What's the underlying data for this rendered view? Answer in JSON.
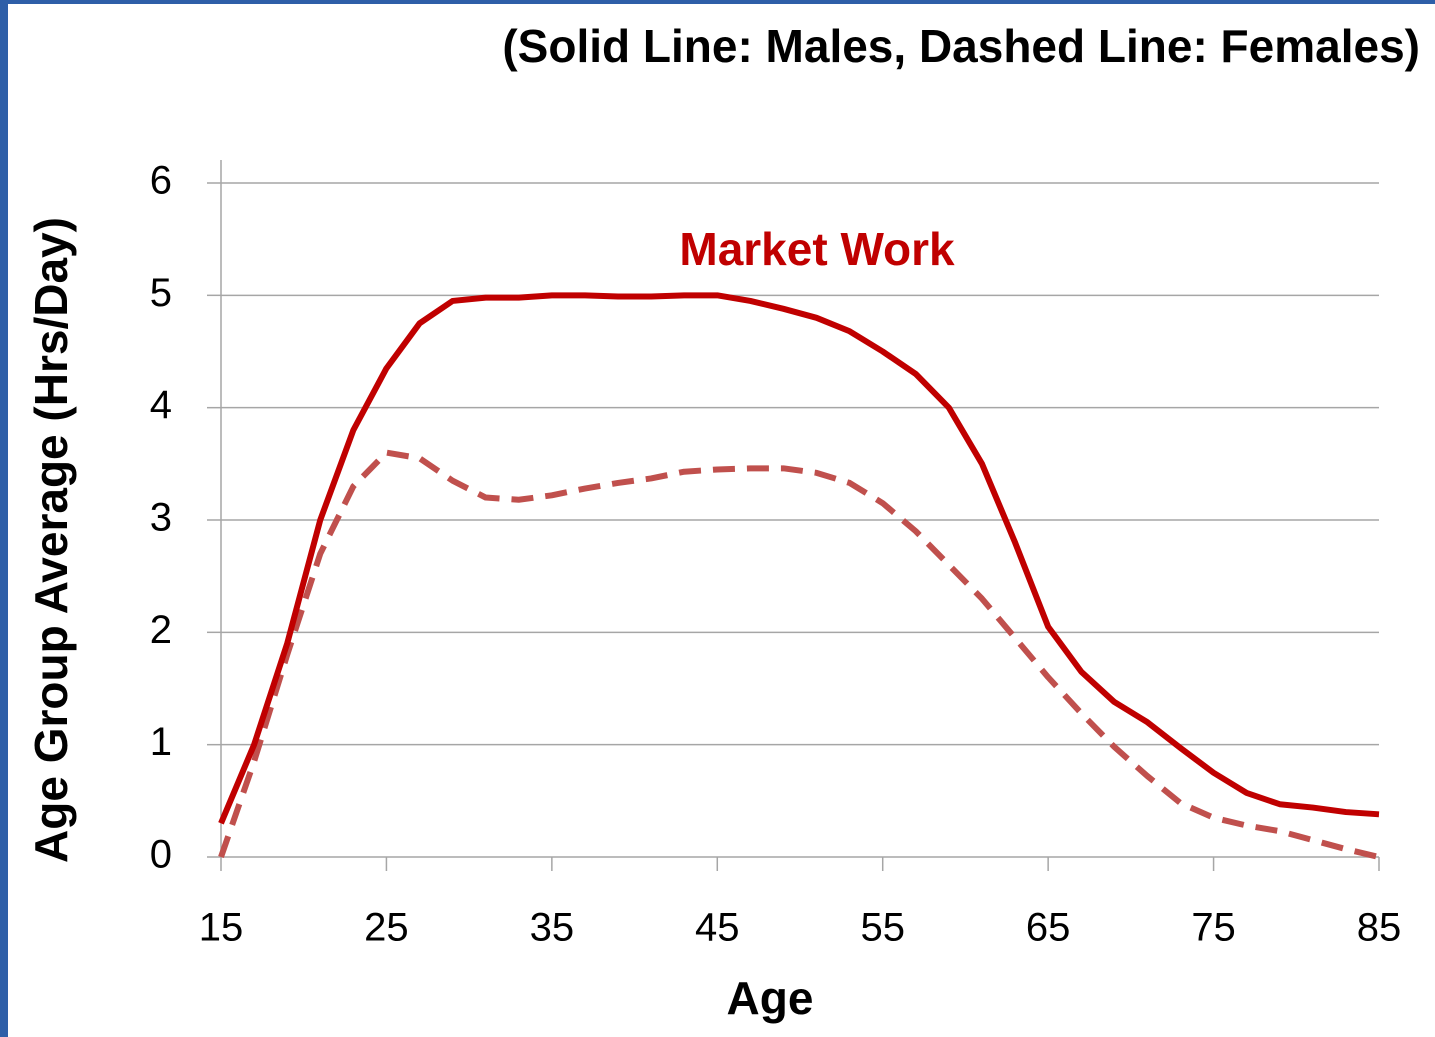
{
  "chart_data": {
    "type": "line",
    "title": "(Solid Line: Males, Dashed Line: Females)",
    "annotation": "Market Work",
    "xlabel": "Age",
    "ylabel": "Age Group Average (Hrs/Day)",
    "x": [
      15,
      17,
      19,
      21,
      23,
      25,
      27,
      29,
      31,
      33,
      35,
      37,
      39,
      41,
      43,
      45,
      47,
      49,
      51,
      53,
      55,
      57,
      59,
      61,
      63,
      65,
      67,
      69,
      71,
      73,
      75,
      77,
      79,
      81,
      83,
      85
    ],
    "series": [
      {
        "color": "#c00000",
        "dashed": false,
        "values": [
          0.3,
          1.0,
          1.9,
          3.0,
          3.8,
          4.35,
          4.75,
          4.95,
          4.98,
          4.98,
          5.0,
          5.0,
          4.99,
          4.99,
          5.0,
          5.0,
          4.95,
          4.88,
          4.8,
          4.68,
          4.5,
          4.3,
          4.0,
          3.5,
          2.8,
          2.05,
          1.65,
          1.38,
          1.2,
          0.97,
          0.75,
          0.57,
          0.47,
          0.44,
          0.4,
          0.38
        ]
      },
      {
        "color": "#c0504d",
        "dashed": true,
        "values": [
          0,
          0.85,
          1.8,
          2.7,
          3.3,
          3.6,
          3.55,
          3.35,
          3.2,
          3.18,
          3.22,
          3.28,
          3.33,
          3.37,
          3.43,
          3.45,
          3.46,
          3.46,
          3.42,
          3.33,
          3.15,
          2.9,
          2.6,
          2.3,
          1.95,
          1.6,
          1.28,
          0.98,
          0.72,
          0.48,
          0.35,
          0.28,
          0.23,
          0.15,
          0.07,
          0
        ]
      }
    ],
    "xlim": [
      15,
      85
    ],
    "xticks": [
      15,
      25,
      35,
      45,
      55,
      65,
      75,
      85
    ],
    "ylim": [
      0,
      6
    ],
    "yticks": [
      0,
      1,
      2,
      3,
      4,
      5,
      6
    ],
    "grid": true
  }
}
